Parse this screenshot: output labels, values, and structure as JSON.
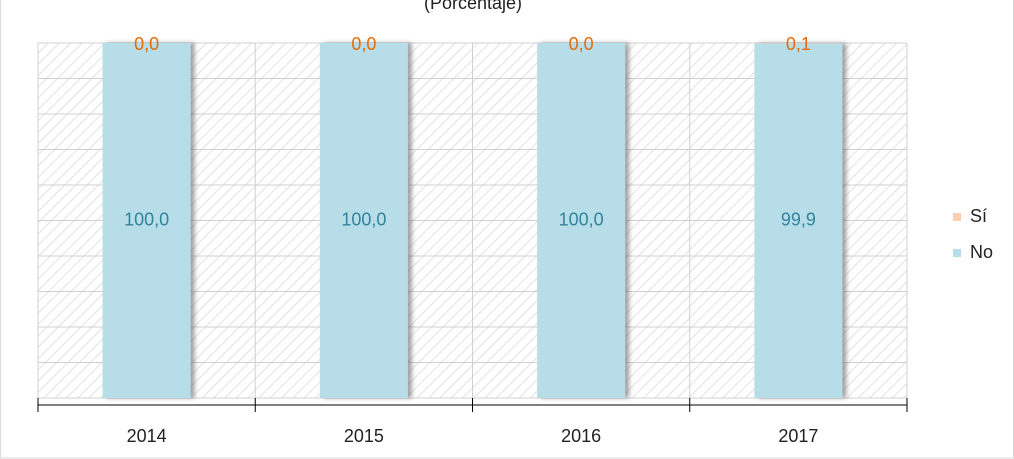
{
  "chart_data": {
    "type": "stacked_bar",
    "title": "(Porcentaje)",
    "categories": [
      "2014",
      "2015",
      "2016",
      "2017"
    ],
    "series": [
      {
        "name": "No",
        "color": "#b7dde8",
        "label_color": "#31849b",
        "values": [
          100.0,
          100.0,
          100.0,
          99.9
        ],
        "value_labels": [
          "100,0",
          "100,0",
          "100,0",
          "99,9"
        ]
      },
      {
        "name": "Sí",
        "color": "#fbd0b0",
        "label_color": "#e36c09",
        "values": [
          0.0,
          0.0,
          0.0,
          0.1
        ],
        "value_labels": [
          "0,0",
          "0,0",
          "0,0",
          "0,1"
        ]
      }
    ],
    "ylim": [
      0,
      100
    ],
    "yticks": [
      0,
      10,
      20,
      30,
      40,
      50,
      60,
      70,
      80,
      90,
      100
    ],
    "grid": true,
    "legend": "right"
  }
}
